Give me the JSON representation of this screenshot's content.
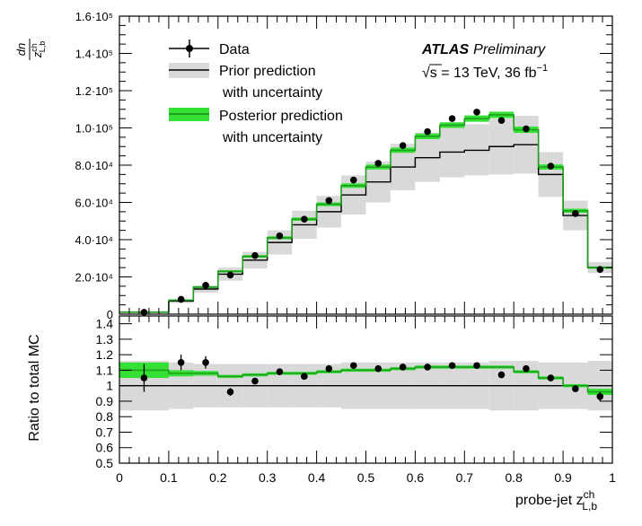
{
  "chart_data": [
    {
      "type": "histogram",
      "ylabel": "dn / z_L,b^ch",
      "ylim": [
        0,
        160000
      ],
      "xlim": [
        0,
        1
      ],
      "bin_edges": [
        0,
        0.1,
        0.15,
        0.2,
        0.25,
        0.3,
        0.35,
        0.4,
        0.45,
        0.5,
        0.55,
        0.6,
        0.65,
        0.7,
        0.75,
        0.8,
        0.85,
        0.9,
        0.95,
        1.0
      ],
      "y_ticks": [
        {
          "value": 0,
          "label": "0"
        },
        {
          "value": 20000,
          "label": "2.0·10⁴"
        },
        {
          "value": 40000,
          "label": "4.0·10⁴"
        },
        {
          "value": 60000,
          "label": "6.0·10⁴"
        },
        {
          "value": 80000,
          "label": "8.0·10⁴"
        },
        {
          "value": 100000,
          "label": "1.0·10⁵"
        },
        {
          "value": 120000,
          "label": "1.2·10⁵"
        },
        {
          "value": 140000,
          "label": "1.4·10⁵"
        },
        {
          "value": 160000,
          "label": "1.6·10⁵"
        }
      ],
      "series": [
        {
          "name": "Data",
          "x": [
            0.05,
            0.125,
            0.175,
            0.225,
            0.275,
            0.325,
            0.375,
            0.425,
            0.475,
            0.525,
            0.575,
            0.625,
            0.675,
            0.725,
            0.775,
            0.825,
            0.875,
            0.925,
            0.975
          ],
          "values": [
            1000,
            8000,
            15500,
            21000,
            31500,
            42000,
            51000,
            61000,
            72000,
            81000,
            90500,
            98000,
            105000,
            108500,
            104000,
            99500,
            79500,
            54000,
            24000
          ]
        },
        {
          "name": "Prior prediction with uncertainty",
          "values": [
            1000,
            7000,
            13500,
            21500,
            29000,
            38500,
            48000,
            55000,
            64000,
            71000,
            79000,
            84000,
            87000,
            88000,
            90000,
            91000,
            75000,
            53000,
            25000
          ],
          "band_low": [
            800,
            6000,
            11500,
            18000,
            24500,
            32000,
            40500,
            46500,
            53500,
            60000,
            66500,
            71000,
            73500,
            74500,
            75000,
            75500,
            63000,
            45000,
            22000
          ],
          "band_high": [
            1200,
            8000,
            15500,
            25000,
            33500,
            45000,
            55500,
            63500,
            74500,
            82000,
            91500,
            97500,
            101000,
            102000,
            105000,
            106500,
            87000,
            61000,
            28000
          ]
        },
        {
          "name": "Posterior prediction with uncertainty",
          "values": [
            1100,
            7500,
            14500,
            23000,
            31000,
            41000,
            51000,
            59000,
            69000,
            79000,
            88000,
            95500,
            101500,
            105000,
            107000,
            99000,
            79000,
            55500,
            25000
          ],
          "band_low": [
            1000,
            7100,
            14000,
            22400,
            30300,
            40200,
            50100,
            58000,
            67800,
            77700,
            86600,
            94000,
            100000,
            103300,
            105300,
            97300,
            77600,
            54400,
            24400
          ],
          "band_high": [
            1200,
            7900,
            15000,
            23600,
            31700,
            41800,
            51900,
            60000,
            70200,
            80300,
            89400,
            97000,
            103000,
            106700,
            108700,
            100700,
            80400,
            56600,
            25600
          ]
        }
      ],
      "legend": [
        "Data",
        "Prior prediction",
        "with uncertainty",
        "Posterior prediction",
        "with uncertainty"
      ],
      "annotations": {
        "experiment": "ATLAS",
        "status": "Preliminary",
        "energy_prefix": "√s = 13 TeV, 36 fb",
        "energy_sup": "−1"
      }
    },
    {
      "type": "histogram",
      "ylabel": "Ratio to total MC",
      "ylim": [
        0.5,
        1.45
      ],
      "xlim": [
        0,
        1
      ],
      "y_tick_labels": [
        "0.5",
        "0.6",
        "0.7",
        "0.8",
        "0.9",
        "1",
        "1.1",
        "1.2",
        "1.3",
        "1.4"
      ],
      "y_tick_values": [
        0.5,
        0.6,
        0.7,
        0.8,
        0.9,
        1.0,
        1.1,
        1.2,
        1.3,
        1.4
      ],
      "x_tick_labels": [
        "0",
        "0.1",
        "0.2",
        "0.3",
        "0.4",
        "0.5",
        "0.6",
        "0.7",
        "0.8",
        "0.9",
        "1"
      ],
      "x_tick_values": [
        0,
        0.1,
        0.2,
        0.3,
        0.4,
        0.5,
        0.6,
        0.7,
        0.8,
        0.9,
        1.0
      ],
      "xlabel": "probe-jet z",
      "xlabel_sup": "ch",
      "xlabel_sub": "L,b",
      "series": [
        {
          "name": "Data",
          "x": [
            0.05,
            0.125,
            0.175,
            0.225,
            0.275,
            0.325,
            0.375,
            0.425,
            0.475,
            0.525,
            0.575,
            0.625,
            0.675,
            0.725,
            0.775,
            0.825,
            0.875,
            0.925,
            0.975
          ],
          "values": [
            1.05,
            1.15,
            1.15,
            0.96,
            1.03,
            1.09,
            1.06,
            1.11,
            1.13,
            1.11,
            1.12,
            1.12,
            1.13,
            1.13,
            1.07,
            1.11,
            1.05,
            0.98,
            0.93
          ],
          "err": [
            0.09,
            0.05,
            0.04,
            0.025,
            0.02,
            0.015,
            0.015,
            0.01,
            0.01,
            0.01,
            0.01,
            0.01,
            0.01,
            0.01,
            0.01,
            0.01,
            0.015,
            0.015,
            0.03
          ]
        },
        {
          "name": "Prior prediction with uncertainty",
          "values": [
            1,
            1,
            1,
            1,
            1,
            1,
            1,
            1,
            1,
            1,
            1,
            1,
            1,
            1,
            1,
            1,
            1,
            1,
            1
          ],
          "band_low": [
            0.84,
            0.85,
            0.86,
            0.86,
            0.86,
            0.86,
            0.86,
            0.86,
            0.85,
            0.85,
            0.85,
            0.85,
            0.85,
            0.85,
            0.84,
            0.84,
            0.85,
            0.85,
            0.84
          ],
          "band_high": [
            1.16,
            1.15,
            1.14,
            1.14,
            1.14,
            1.14,
            1.14,
            1.14,
            1.15,
            1.15,
            1.15,
            1.15,
            1.15,
            1.15,
            1.16,
            1.16,
            1.15,
            1.15,
            1.16
          ]
        },
        {
          "name": "Posterior prediction with uncertainty",
          "values": [
            1.1,
            1.08,
            1.08,
            1.06,
            1.07,
            1.08,
            1.08,
            1.09,
            1.1,
            1.1,
            1.11,
            1.12,
            1.12,
            1.12,
            1.12,
            1.09,
            1.05,
            1.0,
            0.96
          ],
          "band_low": [
            1.05,
            1.06,
            1.065,
            1.05,
            1.06,
            1.07,
            1.07,
            1.08,
            1.09,
            1.09,
            1.1,
            1.11,
            1.11,
            1.11,
            1.11,
            1.08,
            1.04,
            0.99,
            0.94
          ],
          "band_high": [
            1.15,
            1.1,
            1.095,
            1.07,
            1.08,
            1.09,
            1.09,
            1.1,
            1.11,
            1.11,
            1.12,
            1.13,
            1.13,
            1.13,
            1.13,
            1.1,
            1.06,
            1.01,
            0.98
          ]
        }
      ]
    }
  ],
  "colors": {
    "prior_band": "#d9d9d9",
    "posterior_band": "#33e033",
    "posterior_line": "#1f9e1f",
    "data": "#000000"
  }
}
